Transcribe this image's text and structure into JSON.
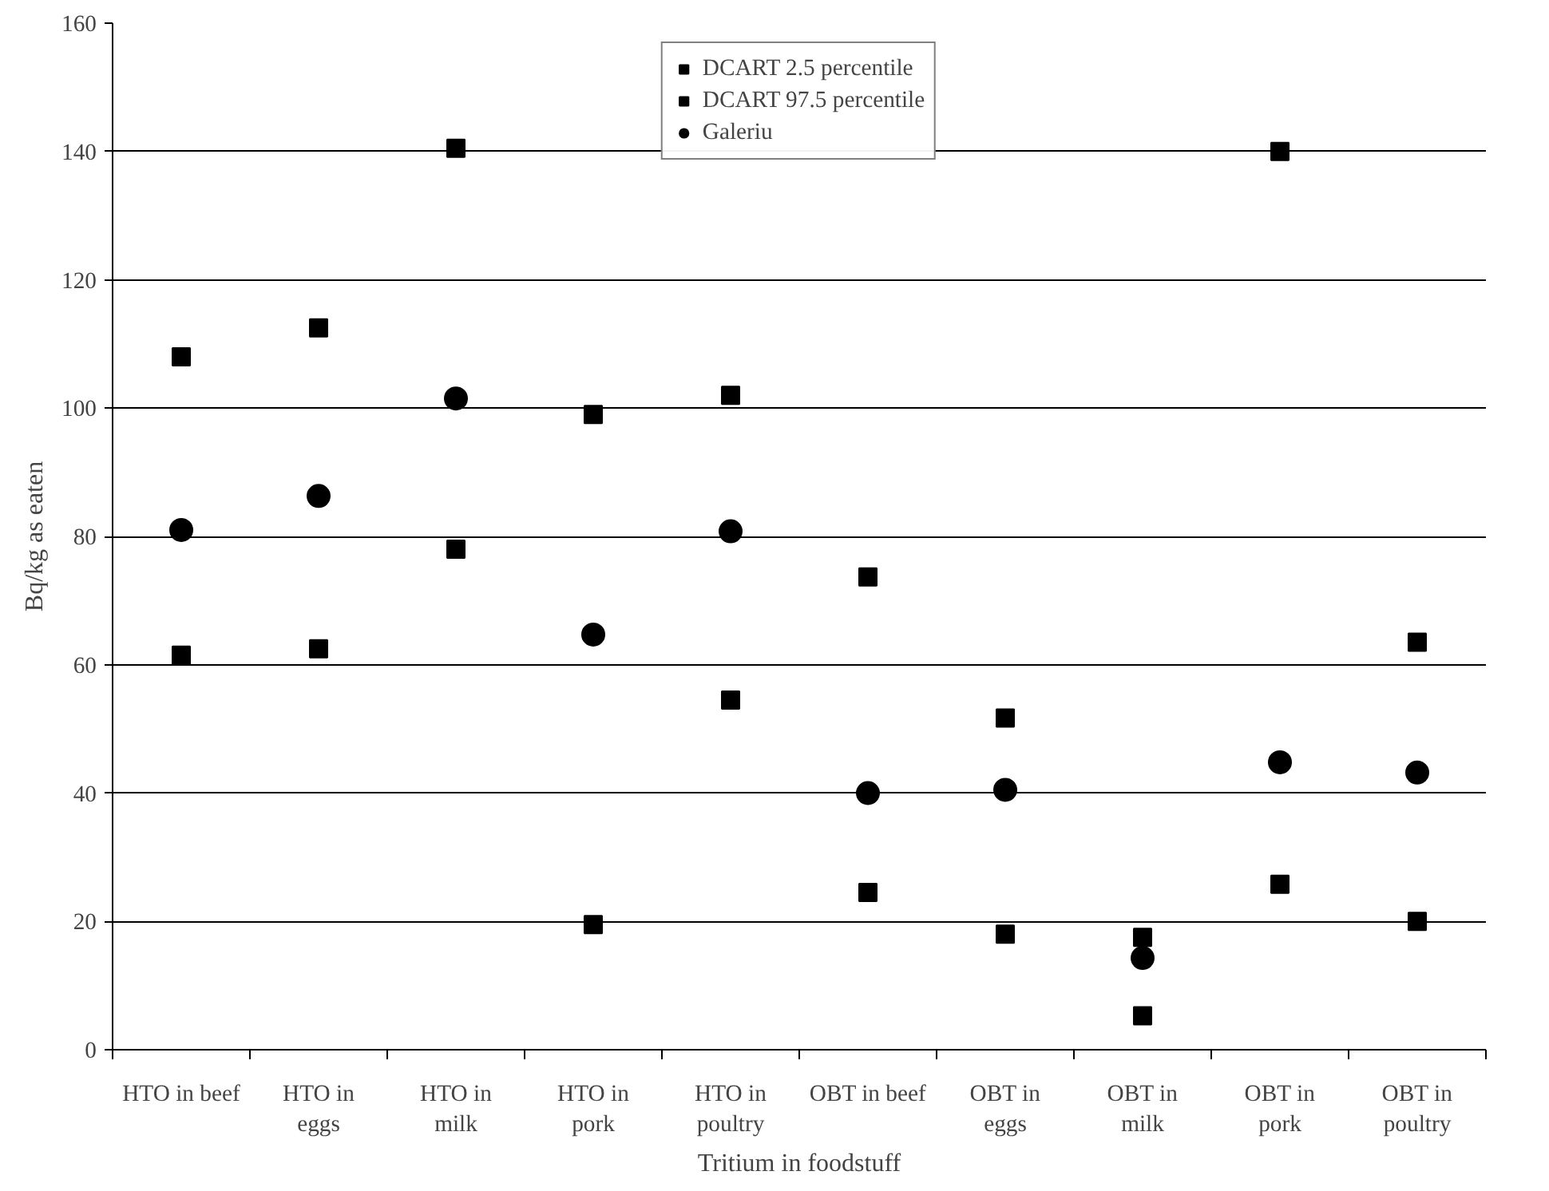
{
  "chart_data": {
    "type": "scatter",
    "xlabel": "Tritium in foodstuff",
    "ylabel": "Bq/kg as eaten",
    "categories": [
      "HTO in beef",
      "HTO in\neggs",
      "HTO in\nmilk",
      "HTO in\npork",
      "HTO in\npoultry",
      "OBT in beef",
      "OBT in\neggs",
      "OBT in\nmilk",
      "OBT in\npork",
      "OBT in\npoultry"
    ],
    "series": [
      {
        "name": "DCART 2.5 percentile",
        "color": "#000000",
        "marker": "square",
        "values": [
          61.5,
          62.5,
          78,
          19.5,
          54.5,
          24.5,
          18,
          5.3,
          25.8,
          20
        ]
      },
      {
        "name": "DCART 97.5 percentile",
        "color": "#000000",
        "marker": "square",
        "values": [
          108,
          112.5,
          140.5,
          99,
          102,
          73.7,
          51.7,
          17.5,
          140,
          63.5
        ]
      },
      {
        "name": "Galeriu",
        "color": "#000000",
        "marker": "circle",
        "values": [
          81,
          86.3,
          101.5,
          64.7,
          80.8,
          40,
          40.5,
          14.3,
          44.8,
          43.2
        ]
      }
    ],
    "ylim": [
      0,
      160
    ],
    "yticks": [
      0,
      20,
      40,
      60,
      80,
      100,
      120,
      140,
      160
    ],
    "grid": "y",
    "legend": "top"
  }
}
